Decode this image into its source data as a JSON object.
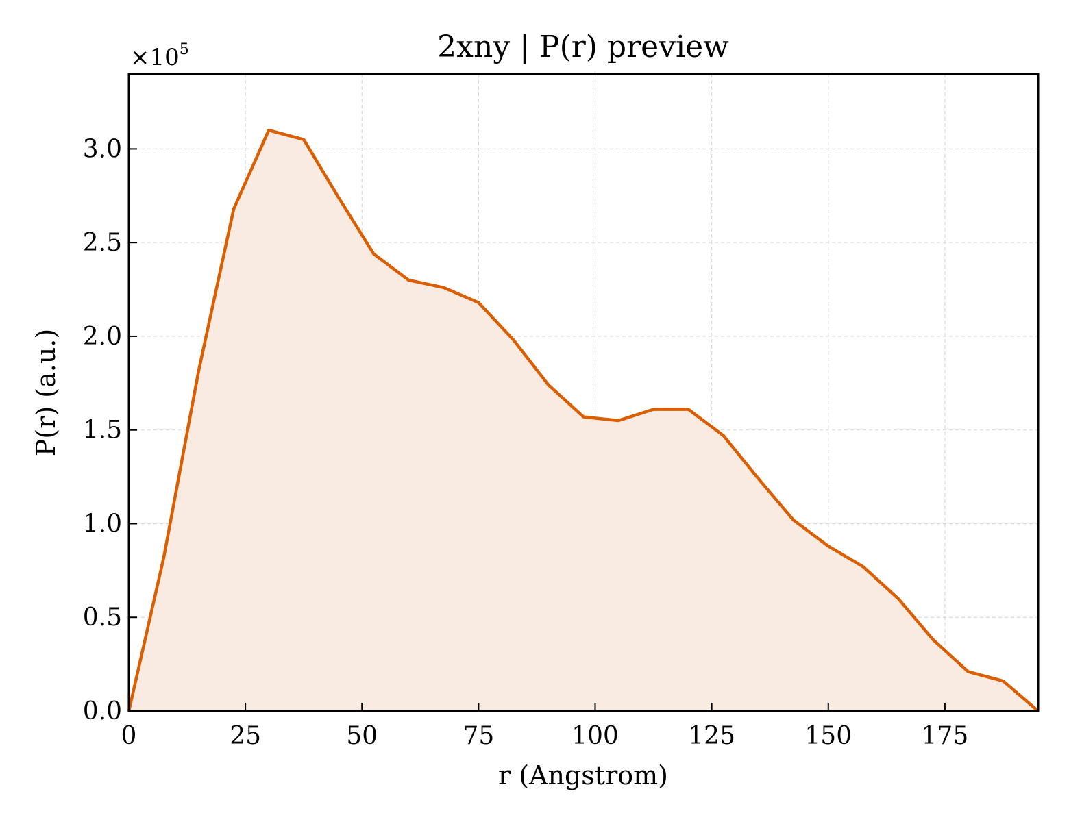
{
  "chart_data": {
    "type": "area",
    "title": "2xny | P(r) preview",
    "xlabel": "r (Angstrom)",
    "ylabel": "P(r) (a.u.)",
    "y_multiplier": "×10",
    "y_multiplier_exp": "5",
    "xlim": [
      0,
      195
    ],
    "ylim": [
      0,
      3.4
    ],
    "xticks": [
      0,
      25,
      50,
      75,
      100,
      125,
      150,
      175
    ],
    "yticks": [
      0.0,
      0.5,
      1.0,
      1.5,
      2.0,
      2.5,
      3.0
    ],
    "ytick_labels": [
      "0.0",
      "0.5",
      "1.0",
      "1.5",
      "2.0",
      "2.5",
      "3.0"
    ],
    "grid": true,
    "colors": {
      "line": "#d95f02",
      "fill": "#f9ebe1"
    },
    "series": [
      {
        "x": [
          0,
          7.5,
          15,
          22.5,
          30,
          37.5,
          45,
          52.5,
          60,
          67.5,
          75,
          82.5,
          90,
          97.5,
          105,
          112.5,
          120,
          127.5,
          135,
          142.5,
          150,
          157.5,
          165,
          172.5,
          180,
          187.5,
          195
        ],
        "y": [
          0.0,
          0.82,
          1.82,
          2.68,
          3.1,
          3.05,
          2.74,
          2.44,
          2.3,
          2.26,
          2.18,
          1.98,
          1.74,
          1.57,
          1.55,
          1.61,
          1.61,
          1.47,
          1.24,
          1.02,
          0.88,
          0.77,
          0.6,
          0.38,
          0.21,
          0.16,
          0.0
        ]
      }
    ]
  }
}
